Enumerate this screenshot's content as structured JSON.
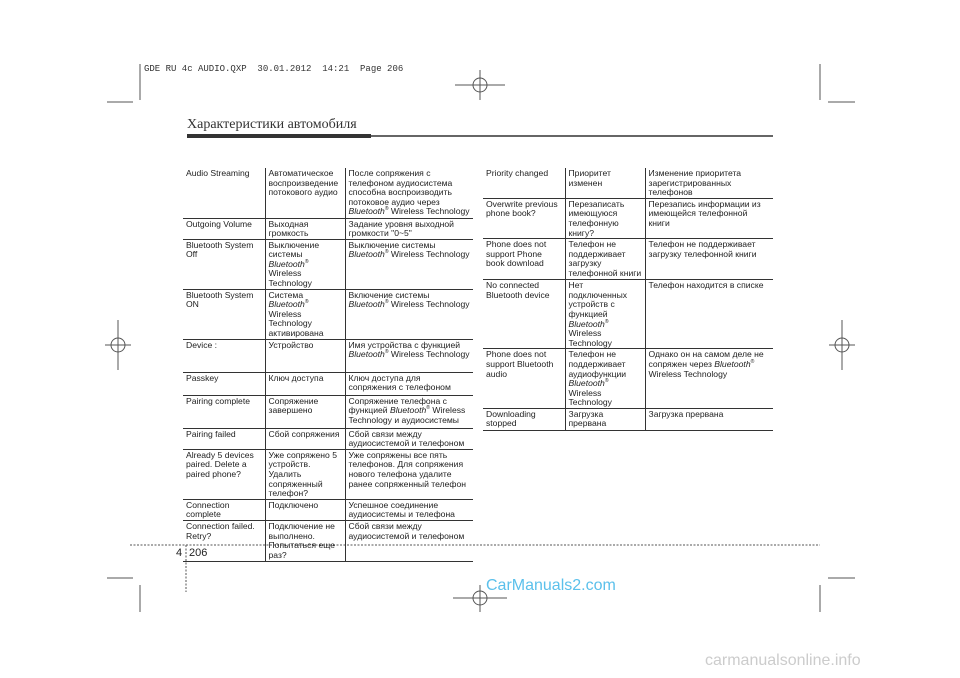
{
  "slug": "GDE RU 4c AUDIO.QXP  30.01.2012  14:21  Page 206",
  "header": {
    "title": "Характеристики автомобиля"
  },
  "left_table": [
    [
      "Audio Streaming",
      "Автоматическое воспроизведение потокового аудио",
      "После сопряжения с телефоном аудиосистема способна воспроизводить потоковое аудио через Bluetooth® Wireless Technology"
    ],
    [
      "Outgoing Volume",
      "Выходная громкость",
      "Задание уровня выходной громкости \"0~5\""
    ],
    [
      "Bluetooth System Off",
      "Выключение системы Bluetooth® Wireless Technology",
      "Выключение системы Bluetooth® Wireless Technology"
    ],
    [
      "Bluetooth System ON",
      "Система Bluetooth® Wireless Technology активирована",
      "Включение системы Bluetooth® Wireless Technology"
    ],
    [
      "Device :",
      "Устройство",
      "Имя устройства с функцией Bluetooth® Wireless Technology"
    ],
    [
      "Passkey",
      "Ключ доступа",
      "Ключ доступа для сопряжения с телефоном"
    ],
    [
      "Pairing complete",
      "Сопряжение завершено",
      "Сопряжение телефона с функцией Bluetooth® Wireless Technology и аудиосистемы"
    ],
    [
      "Pairing failed",
      "Сбой сопряжения",
      "Сбой связи между аудиосистемой и телефоном"
    ],
    [
      "Already 5 devices paired. Delete a paired phone?",
      "Уже сопряжено 5 устройств. Удалить сопряженный телефон?",
      "Уже сопряжены все пять телефонов. Для сопряжения нового телефона удалите ранее сопряженный телефон"
    ],
    [
      "Connection complete",
      "Подключено",
      "Успешное соединение аудиосистемы и телефона"
    ],
    [
      "Connection failed. Retry?",
      "Подключение не выполнено. Попытаться еще раз?",
      "Сбой связи между аудиосистемой и телефоном"
    ]
  ],
  "right_table": [
    [
      "Priority changed",
      "Приоритет изменен",
      "Изменение приоритета зарегистрированных телефонов"
    ],
    [
      "Overwrite previous phone book?",
      "Перезаписать имеющуюся телефонную книгу?",
      "Перезапись информации из имеющейся телефонной книги"
    ],
    [
      "Phone does not support Phone book download",
      "Телефон не поддерживает загрузку телефонной книги",
      "Телефон не поддерживает загрузку телефонной книги"
    ],
    [
      "No connected Bluetooth device",
      "Нет подключенных устройств с функцией Bluetooth® Wireless Technology",
      "Телефон находится в списке"
    ],
    [
      "Phone does not support Bluetooth audio",
      "Телефон не поддерживает аудиофункции Bluetooth® Wireless Technology",
      "Однако он на самом деле не сопряжен через Bluetooth® Wireless Technology"
    ],
    [
      "Downloading stopped",
      "Загрузка прервана",
      "Загрузка прервана"
    ]
  ],
  "footer": {
    "chapter": "4",
    "page": "206"
  },
  "watermarks": {
    "carmanuals": "CarManuals2.com",
    "online": "carmanualsonline.info"
  },
  "colors": {
    "watermark": "#5bc0eb",
    "text": "#222222"
  }
}
